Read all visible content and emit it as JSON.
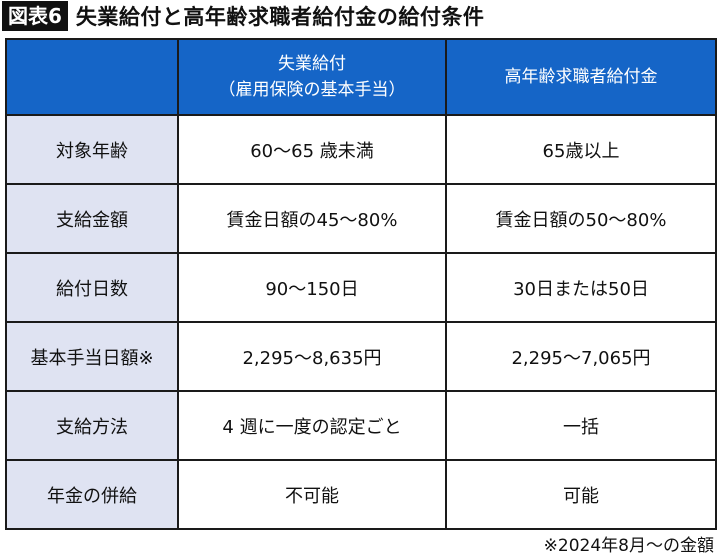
{
  "title": {
    "badge": "図表6",
    "text": "失業給付と高年齢求職者給付金の給付条件"
  },
  "table": {
    "headers": [
      {
        "line1": "失業給付",
        "line2": "（雇用保険の基本手当）"
      },
      {
        "line1": "高年齢求職者給付金",
        "line2": ""
      }
    ],
    "rows": [
      {
        "label": "対象年齢",
        "values": [
          "60～65 歳未満",
          "65歳以上"
        ]
      },
      {
        "label": "支給金額",
        "values": [
          "賃金日額の45～80%",
          "賃金日額の50～80%"
        ]
      },
      {
        "label": "給付日数",
        "values": [
          "90～150日",
          "30日または50日"
        ]
      },
      {
        "label": "基本手当日額※",
        "values": [
          "2,295～8,635円",
          "2,295～7,065円"
        ]
      },
      {
        "label": "支給方法",
        "values": [
          "4 週に一度の認定ごと",
          "一括"
        ]
      },
      {
        "label": "年金の併給",
        "values": [
          "不可能",
          "可能"
        ]
      }
    ]
  },
  "footnote": "※2024年8月～の金額",
  "colors": {
    "header_bg": "#1565c7",
    "label_bg": "#dfe3f2",
    "border": "#1a1a1a"
  }
}
